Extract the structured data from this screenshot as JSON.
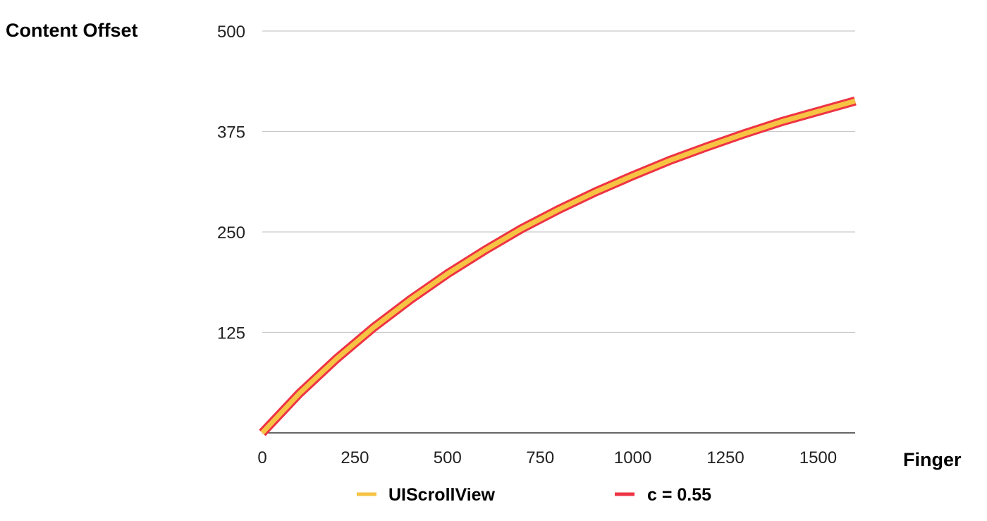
{
  "chart_data": {
    "type": "line",
    "title": "",
    "ylabel": "Content Offset",
    "xlabel": "Finger",
    "xlim": [
      0,
      1600
    ],
    "ylim": [
      0,
      500
    ],
    "x_ticks": [
      0,
      250,
      500,
      750,
      1000,
      1250,
      1500
    ],
    "y_ticks": [
      125,
      250,
      375,
      500
    ],
    "grid": true,
    "legend_position": "bottom",
    "series": [
      {
        "name": "UIScrollView",
        "color": "#F6C343",
        "x": [
          0,
          100,
          200,
          300,
          400,
          500,
          600,
          700,
          800,
          900,
          1000,
          1100,
          1200,
          1300,
          1400,
          1500,
          1600
        ],
        "values": [
          0,
          49,
          92,
          131,
          166,
          198,
          227,
          254,
          278,
          300,
          320,
          339,
          356,
          372,
          387,
          400,
          413
        ]
      },
      {
        "name": "c = 0.55",
        "color": "#EE3344",
        "x": [
          0,
          100,
          200,
          300,
          400,
          500,
          600,
          700,
          800,
          900,
          1000,
          1100,
          1200,
          1300,
          1400,
          1500,
          1600
        ],
        "values": [
          0,
          49,
          92,
          131,
          166,
          198,
          227,
          254,
          278,
          300,
          320,
          339,
          356,
          372,
          387,
          400,
          413
        ]
      }
    ]
  }
}
